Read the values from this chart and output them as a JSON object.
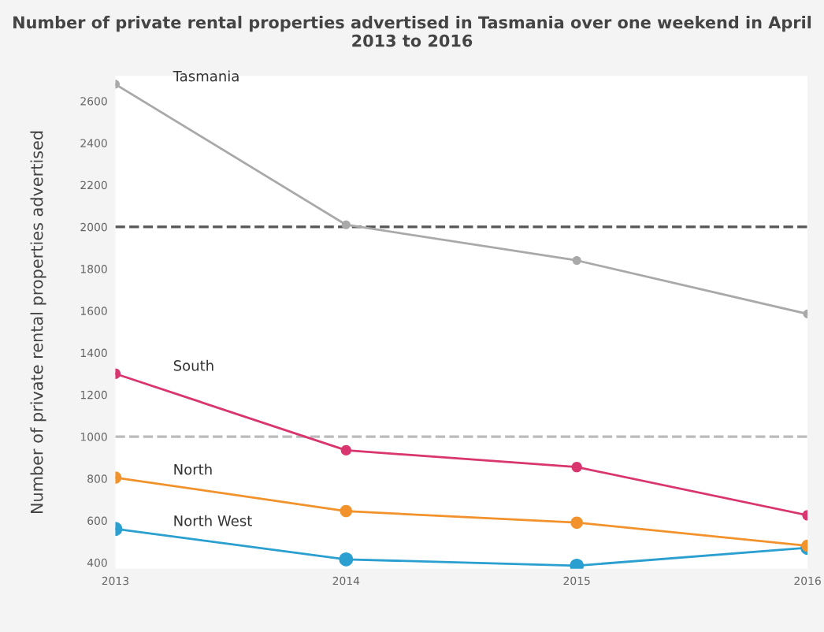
{
  "chart_data": {
    "type": "line",
    "title": "Number of private rental properties advertised in Tasmania over one weekend in April 2013 to 2016",
    "ylabel": "Number of private rental properties advertised",
    "x": [
      2013,
      2014,
      2015,
      2016
    ],
    "series": [
      {
        "name": "Tasmania",
        "color": "#a9a9a9",
        "values": [
          2680,
          2010,
          1840,
          1585
        ]
      },
      {
        "name": "South",
        "color": "#d9356e",
        "values": [
          1300,
          935,
          855,
          625
        ]
      },
      {
        "name": "North",
        "color": "#f2922c",
        "values": [
          805,
          645,
          590,
          480
        ]
      },
      {
        "name": "North West",
        "color": "#2a9fd0",
        "values": [
          560,
          415,
          385,
          470
        ]
      }
    ],
    "xlim": [
      2013,
      2016
    ],
    "xticks": [
      2013,
      2014,
      2015,
      2016
    ],
    "ylim": [
      370,
      2720
    ],
    "yticks": [
      400,
      600,
      800,
      1000,
      1200,
      1400,
      1600,
      1800,
      2000,
      2200,
      2400,
      2600
    ],
    "ref_lines": [
      {
        "axis": "y",
        "value": 2000,
        "color": "#555555",
        "line_style": "dashed"
      },
      {
        "axis": "y",
        "value": 1000,
        "color": "#bbbbbb",
        "line_style": "dashed"
      }
    ],
    "marker": "circle",
    "line_style": "solid",
    "grid": false,
    "legend": false
  }
}
